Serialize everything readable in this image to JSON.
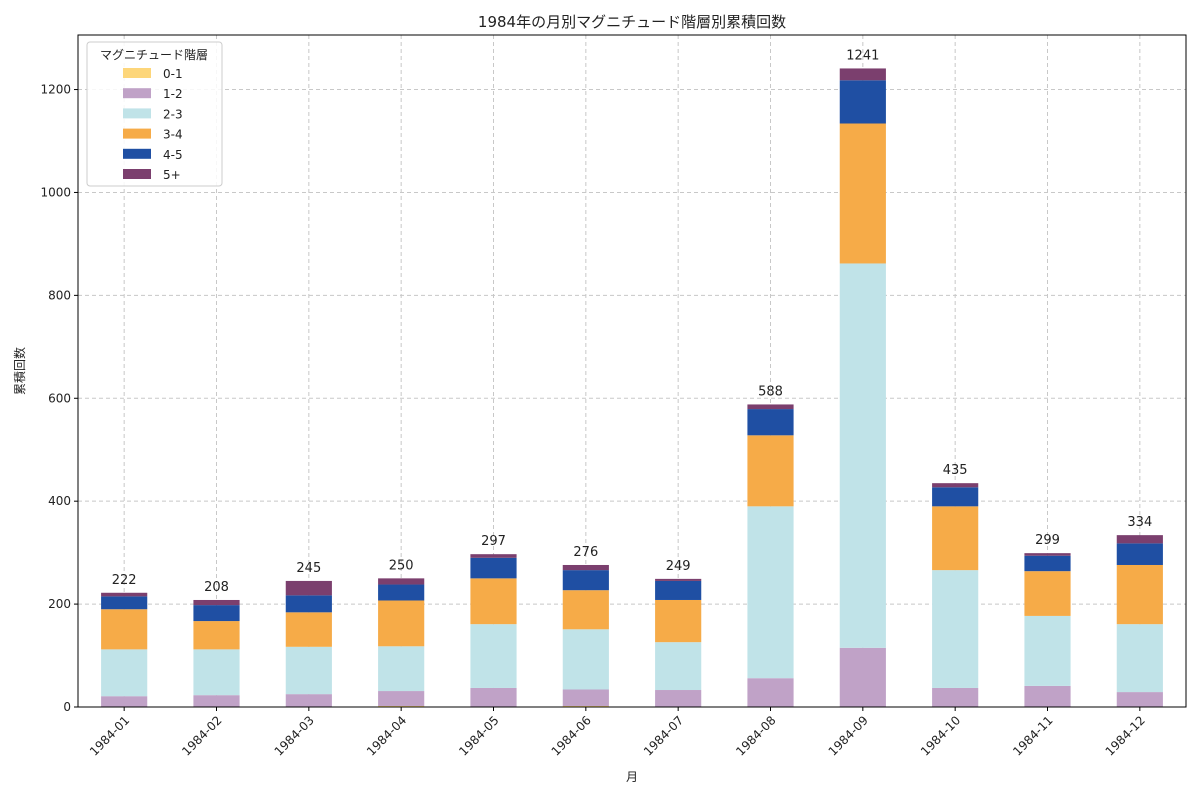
{
  "chart_data": {
    "type": "bar",
    "stacked": true,
    "title": "1984年の月別マグニチュード階層別累積回数",
    "xlabel": "月",
    "ylabel": "累積回数",
    "ylim": [
      0,
      1306
    ],
    "yticks": [
      0,
      200,
      400,
      600,
      800,
      1000,
      1200
    ],
    "grid": true,
    "legend": {
      "title": "マグニチュード階層",
      "placement": "top-left"
    },
    "categories": [
      "1984-01",
      "1984-02",
      "1984-03",
      "1984-04",
      "1984-05",
      "1984-06",
      "1984-07",
      "1984-08",
      "1984-09",
      "1984-10",
      "1984-11",
      "1984-12"
    ],
    "series": [
      {
        "name": "0-1",
        "color": "#fdd67a",
        "values": [
          0,
          0,
          0,
          2,
          0,
          2,
          0,
          0,
          0,
          0,
          0,
          0
        ]
      },
      {
        "name": "1-2",
        "color": "#c0a2c7",
        "values": [
          21,
          23,
          25,
          29,
          37,
          32,
          33,
          56,
          115,
          37,
          41,
          29
        ]
      },
      {
        "name": "2-3",
        "color": "#c0e3e8",
        "values": [
          91,
          89,
          92,
          87,
          124,
          117,
          93,
          334,
          747,
          229,
          136,
          132
        ]
      },
      {
        "name": "3-4",
        "color": "#f6ab48",
        "values": [
          78,
          55,
          67,
          89,
          89,
          76,
          82,
          138,
          272,
          124,
          87,
          115
        ]
      },
      {
        "name": "4-5",
        "color": "#1f4fa3",
        "values": [
          25,
          31,
          33,
          31,
          40,
          39,
          37,
          51,
          84,
          37,
          30,
          42
        ]
      },
      {
        "name": "5+",
        "color": "#7b3f6e",
        "values": [
          7,
          10,
          28,
          12,
          7,
          10,
          4,
          9,
          23,
          8,
          5,
          16
        ]
      }
    ],
    "totals": [
      "222",
      "208",
      "245",
      "250",
      "297",
      "276",
      "249",
      "588",
      "1241",
      "435",
      "299",
      "334"
    ]
  }
}
